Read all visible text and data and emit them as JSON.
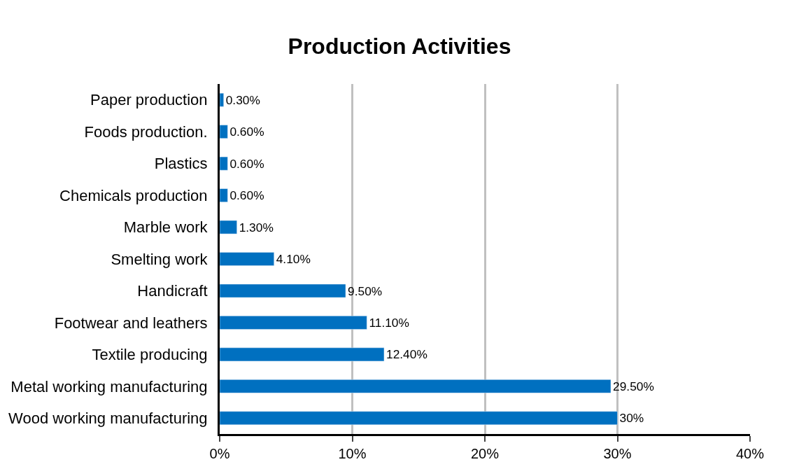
{
  "chart_data": {
    "type": "bar",
    "orientation": "horizontal",
    "title": "Production Activities",
    "categories": [
      "Paper production",
      "Foods production.",
      "Plastics",
      "Chemicals production",
      "Marble work",
      "Smelting work",
      "Handicraft",
      "Footwear and leathers",
      "Textile producing",
      "Metal working manufacturing",
      "Wood working manufacturing"
    ],
    "values": [
      0.3,
      0.6,
      0.6,
      0.6,
      1.3,
      4.1,
      9.5,
      11.1,
      12.4,
      29.5,
      30
    ],
    "value_labels": [
      "0.30%",
      "0.60%",
      "0.60%",
      "0.60%",
      "1.30%",
      "4.10%",
      "9.50%",
      "11.10%",
      "12.40%",
      "29.50%",
      "30%"
    ],
    "color": "#0070c0",
    "xlim": [
      0,
      40
    ],
    "xticks": [
      {
        "value": 0,
        "label": "0%"
      },
      {
        "value": 10,
        "label": "10%"
      },
      {
        "value": 20,
        "label": "20%"
      },
      {
        "value": 30,
        "label": "30%"
      },
      {
        "value": 40,
        "label": "40%"
      }
    ],
    "grid": "x",
    "legend": false
  }
}
